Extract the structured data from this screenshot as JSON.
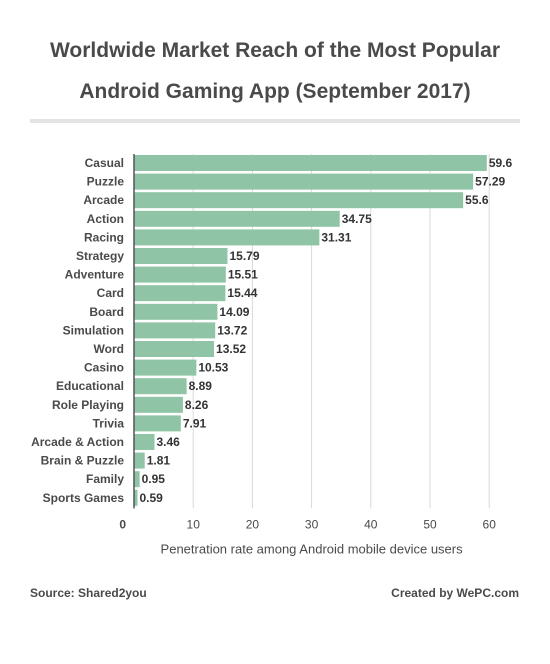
{
  "title_line1": "Worldwide Market Reach of the Most Popular",
  "title_line2": "Android Gaming App (September 2017)",
  "footer": {
    "source": "Source: Shared2you",
    "credit": "Created by WePC.com"
  },
  "chart_data": {
    "type": "bar",
    "orientation": "horizontal",
    "categories": [
      "Casual",
      "Puzzle",
      "Arcade",
      "Action",
      "Racing",
      "Strategy",
      "Adventure",
      "Card",
      "Board",
      "Simulation",
      "Word",
      "Casino",
      "Educational",
      "Role Playing",
      "Trivia",
      "Arcade & Action",
      "Brain & Puzzle",
      "Family",
      "Sports Games"
    ],
    "values": [
      59.6,
      57.29,
      55.6,
      34.75,
      31.31,
      15.79,
      15.51,
      15.44,
      14.09,
      13.72,
      13.52,
      10.53,
      8.89,
      8.26,
      7.91,
      3.46,
      1.81,
      0.95,
      0.59
    ],
    "value_labels": [
      "59.6",
      "57.29",
      "55.6",
      "34.75",
      "31.31",
      "15.79",
      "15.51",
      "15.44",
      "14.09",
      "13.72",
      "13.52",
      "10.53",
      "8.89",
      "8.26",
      "7.91",
      "3.46",
      "1.81",
      "0.95",
      "0.59"
    ],
    "xlabel": "Penetration rate among Android mobile device users",
    "ylabel": "",
    "xlim": [
      0,
      60
    ],
    "xticks": [
      0,
      10,
      20,
      30,
      40,
      50,
      60
    ],
    "grid": true,
    "legend": "none",
    "bar_color": "#8fc5a6"
  }
}
